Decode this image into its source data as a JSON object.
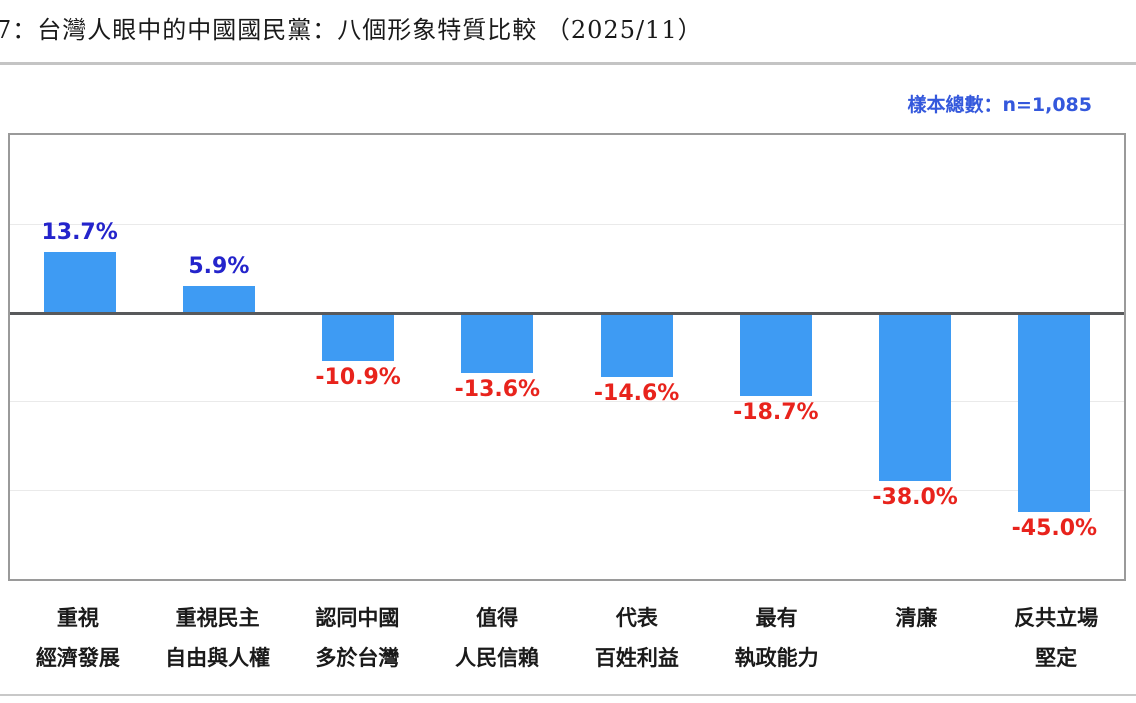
{
  "header": {
    "title": "7：台灣人眼中的中國國民黨：八個形象特質比較 （2025/11）",
    "sample_note": "樣本總數：n=1,085"
  },
  "chart_data": {
    "type": "bar",
    "title": "台灣人眼中的中國國民黨：八個形象特質比較（2025/11）",
    "sample_size": "n=1,085",
    "categories": [
      [
        "重視",
        "經濟發展"
      ],
      [
        "重視民主",
        "自由與人權"
      ],
      [
        "認同中國",
        "多於台灣"
      ],
      [
        "值得",
        "人民信賴"
      ],
      [
        "代表",
        "百姓利益"
      ],
      [
        "最有",
        "執政能力"
      ],
      [
        "清廉"
      ],
      [
        "反共立場",
        "堅定"
      ]
    ],
    "values": [
      13.7,
      5.9,
      -10.9,
      -13.6,
      -14.6,
      -18.7,
      -38.0,
      -45.0
    ],
    "labels": [
      "13.7%",
      "5.9%",
      "-10.9%",
      "-13.6%",
      "-14.6%",
      "-18.7%",
      "-38.0%",
      "-45.0%"
    ],
    "ylabel": "",
    "xlabel": "",
    "ylim": [
      -60,
      40
    ],
    "gridline_step": 20,
    "grid": true,
    "legend": false,
    "colors": {
      "bar": "#3e9bf3",
      "positive_label": "#2424cb",
      "negative_label": "#e8231c",
      "sample_note": "#3458dc",
      "zero_line": "#58595b",
      "gridline": "#eaeaea",
      "frame": "#9a9a9a"
    }
  }
}
